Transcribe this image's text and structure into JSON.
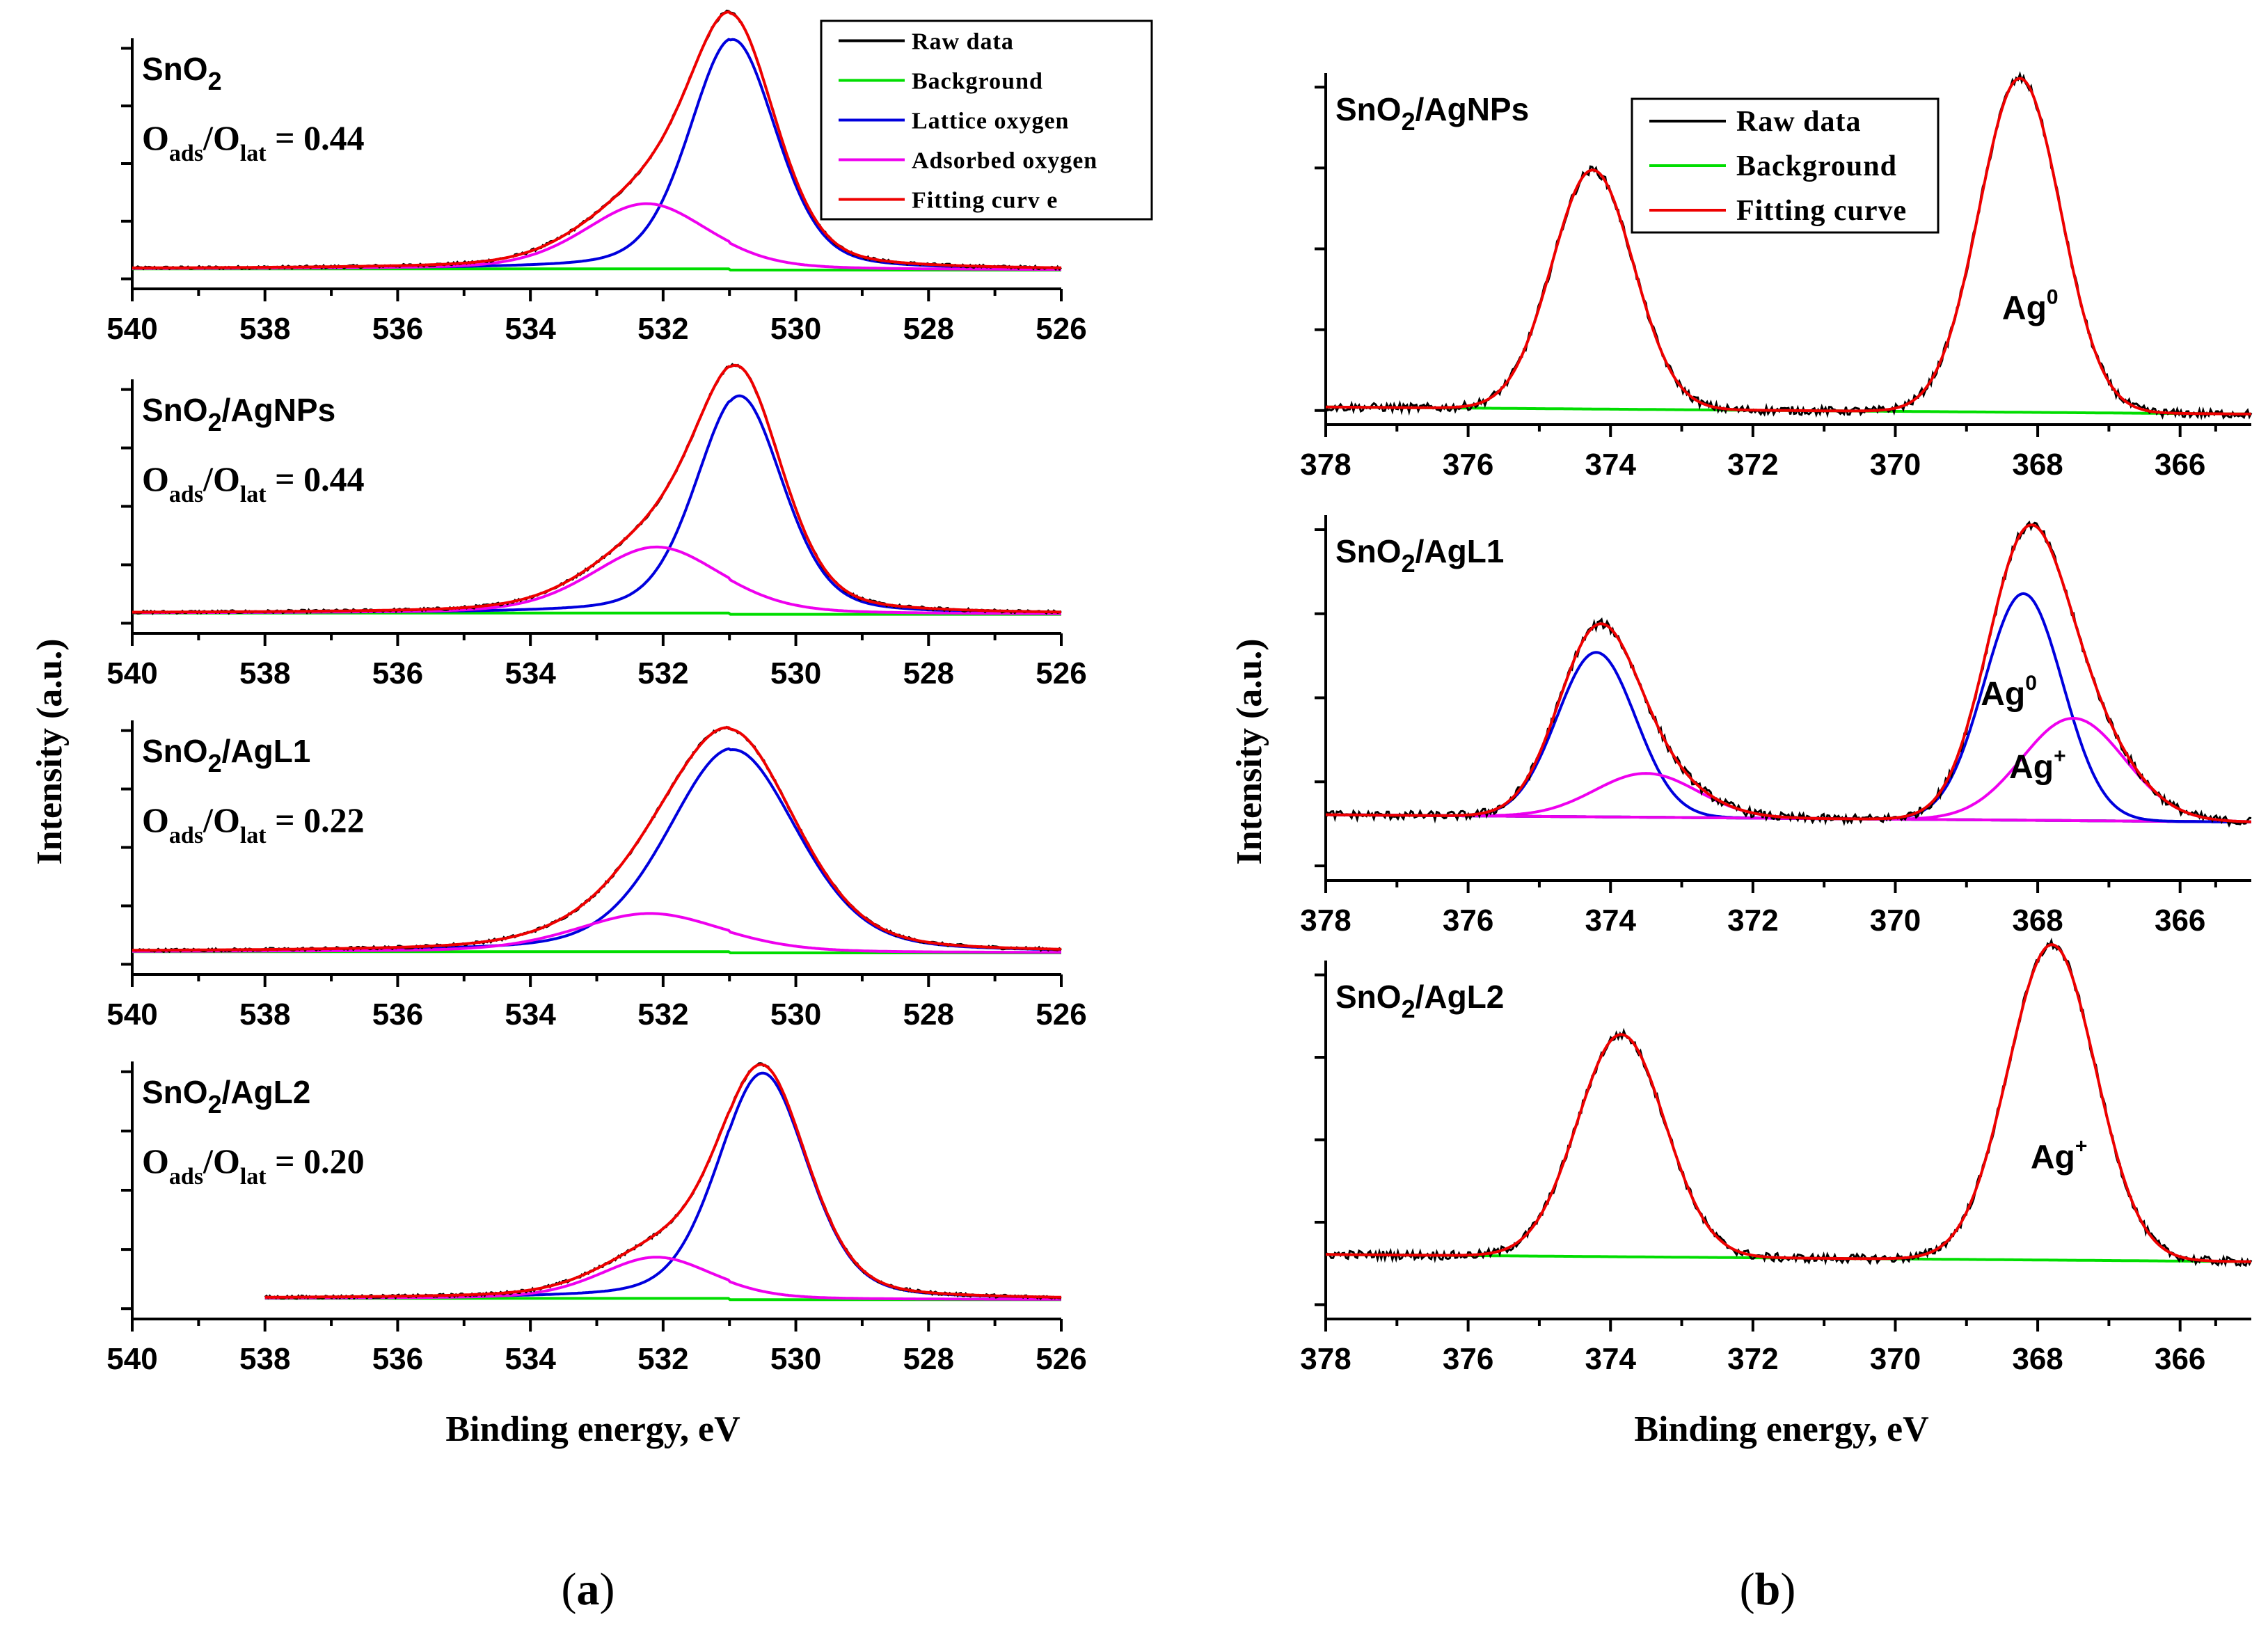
{
  "figure": {
    "ylabel": "Intensity (a.u.)",
    "xlabel": "Binding energy, eV",
    "panel_a_label": {
      "open": "(",
      "letter": "a",
      "close": ")"
    },
    "panel_b_label": {
      "open": "(",
      "letter": "b",
      "close": ")"
    }
  },
  "colors": {
    "raw": "#000000",
    "background": "#00dd00",
    "lattice": "#0000dd",
    "adsorbed": "#ee00ee",
    "fit": "#ee0000"
  },
  "chart_data": [
    {
      "id": "a1",
      "type": "line",
      "panel": "a",
      "sample": {
        "base": "SnO",
        "sub": "2",
        "rest": ""
      },
      "ratio": {
        "O1": "O",
        "sub1": "ads",
        "slash": "/",
        "O2": "O",
        "sub2": "lat",
        "value": " = 0.44"
      },
      "xlim": [
        540,
        526
      ],
      "xticks": [
        540,
        538,
        536,
        534,
        532,
        530,
        528,
        526
      ],
      "background": 0.08,
      "components": [
        {
          "series": "lattice",
          "center": 530.95,
          "height": 0.92,
          "fwhm": 1.55
        },
        {
          "series": "adsorbed",
          "center": 532.25,
          "height": 0.26,
          "fwhm": 2.2
        }
      ],
      "legend": [
        "Raw data",
        "Background",
        "Lattice oxygen",
        "Adsorbed oxygen",
        "Fitting curv e"
      ]
    },
    {
      "id": "a2",
      "type": "line",
      "panel": "a",
      "sample": {
        "base": "SnO",
        "sub": "2",
        "rest": "/AgNPs"
      },
      "ratio": {
        "O1": "O",
        "sub1": "ads",
        "slash": "/",
        "O2": "O",
        "sub2": "lat",
        "value": " = 0.44"
      },
      "xlim": [
        540,
        526
      ],
      "xticks": [
        540,
        538,
        536,
        534,
        532,
        530,
        528,
        526
      ],
      "background": 0.08,
      "components": [
        {
          "series": "lattice",
          "center": 530.85,
          "height": 0.86,
          "fwhm": 1.55
        },
        {
          "series": "adsorbed",
          "center": 532.1,
          "height": 0.26,
          "fwhm": 2.3
        }
      ]
    },
    {
      "id": "a3",
      "type": "line",
      "panel": "a",
      "sample": {
        "base": "SnO",
        "sub": "2",
        "rest": "/AgL1"
      },
      "ratio": {
        "O1": "O",
        "sub1": "ads",
        "slash": "/",
        "O2": "O",
        "sub2": "lat",
        "value": " = 0.22"
      },
      "xlim": [
        540,
        526
      ],
      "xticks": [
        540,
        538,
        536,
        534,
        532,
        530,
        528,
        526
      ],
      "background": 0.09,
      "components": [
        {
          "series": "lattice",
          "center": 530.95,
          "height": 0.8,
          "fwhm": 2.3
        },
        {
          "series": "adsorbed",
          "center": 532.2,
          "height": 0.15,
          "fwhm": 2.6
        }
      ]
    },
    {
      "id": "a4",
      "type": "line",
      "panel": "a",
      "sample": {
        "base": "SnO",
        "sub": "2",
        "rest": "/AgL2"
      },
      "ratio": {
        "O1": "O",
        "sub1": "ads",
        "slash": "/",
        "O2": "O",
        "sub2": "lat",
        "value": " = 0.20"
      },
      "xlim": [
        540,
        526
      ],
      "xticks": [
        540,
        538,
        536,
        534,
        532,
        530,
        528,
        526
      ],
      "xstart": 538,
      "background": 0.08,
      "components": [
        {
          "series": "lattice",
          "center": 530.5,
          "height": 0.88,
          "fwhm": 1.6
        },
        {
          "series": "adsorbed",
          "center": 532.1,
          "height": 0.16,
          "fwhm": 2.0
        }
      ]
    },
    {
      "id": "b1",
      "type": "line",
      "panel": "b",
      "sample": {
        "base": "SnO",
        "sub": "2",
        "rest": "/AgNPs"
      },
      "xlim": [
        378,
        365
      ],
      "xticks": [
        378,
        376,
        374,
        372,
        370,
        368,
        366
      ],
      "background": 0.05,
      "components": [
        {
          "series": "fit-only",
          "center": 374.25,
          "height": 0.68,
          "fwhm": 1.35
        },
        {
          "series": "fit-only",
          "center": 368.25,
          "height": 0.95,
          "fwhm": 1.35
        }
      ],
      "annotations": [
        {
          "base": "Ag",
          "sup": "0",
          "x": 368.5,
          "y": 0.3
        }
      ],
      "legend": [
        "Raw data",
        "Background",
        "Fitting curve"
      ]
    },
    {
      "id": "b2",
      "type": "line",
      "panel": "b",
      "sample": {
        "base": "SnO",
        "sub": "2",
        "rest": "/AgL1"
      },
      "xlim": [
        378,
        365
      ],
      "xticks": [
        378,
        376,
        374,
        372,
        370,
        368,
        366
      ],
      "background": 0.18,
      "components": [
        {
          "series": "lattice",
          "center": 374.2,
          "height": 0.45,
          "fwhm": 1.3
        },
        {
          "series": "adsorbed",
          "center": 373.5,
          "height": 0.12,
          "fwhm": 1.7
        },
        {
          "series": "lattice",
          "center": 368.2,
          "height": 0.62,
          "fwhm": 1.3
        },
        {
          "series": "adsorbed",
          "center": 367.5,
          "height": 0.28,
          "fwhm": 1.7
        }
      ],
      "annotations": [
        {
          "base": "Ag",
          "sup": "0",
          "x": 368.8,
          "y": 0.48
        },
        {
          "base": "Ag",
          "sup": "+",
          "x": 368.4,
          "y": 0.28
        }
      ]
    },
    {
      "id": "b3",
      "type": "line",
      "panel": "b",
      "sample": {
        "base": "SnO",
        "sub": "2",
        "rest": "/AgL2"
      },
      "xlim": [
        378,
        365
      ],
      "xticks": [
        378,
        376,
        374,
        372,
        370,
        368,
        366
      ],
      "background": 0.18,
      "components": [
        {
          "series": "fit-only",
          "center": 373.85,
          "height": 0.62,
          "fwhm": 1.45
        },
        {
          "series": "fit-only",
          "center": 367.8,
          "height": 0.88,
          "fwhm": 1.45
        }
      ],
      "annotations": [
        {
          "base": "Ag",
          "sup": "+",
          "x": 368.1,
          "y": 0.42
        }
      ]
    }
  ]
}
